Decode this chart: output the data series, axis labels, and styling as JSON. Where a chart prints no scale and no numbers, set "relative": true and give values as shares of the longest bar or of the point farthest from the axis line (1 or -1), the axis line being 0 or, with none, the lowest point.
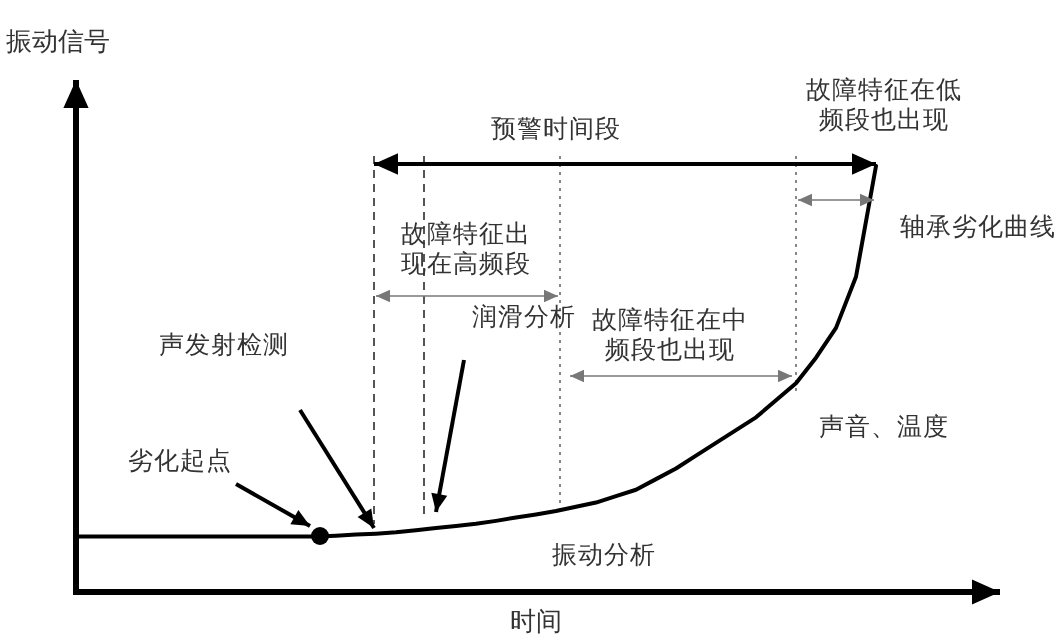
{
  "chart_data": {
    "type": "line",
    "relative": true,
    "xlabel": "时间",
    "ylabel": "振动信号",
    "tick_labels": false,
    "categories": [
      null,
      null,
      null,
      null,
      null,
      null,
      null,
      null,
      null,
      null,
      null,
      null,
      null,
      null,
      null,
      null,
      null,
      null,
      null,
      null,
      null,
      null,
      null,
      null,
      null,
      null,
      null,
      null,
      null,
      null,
      null,
      null,
      null,
      null,
      null,
      null,
      null,
      null,
      null,
      null,
      null
    ],
    "series": [
      {
        "color": "#000000",
        "values": [
          0.13,
          0.13,
          0.13,
          0.13,
          0.13,
          0.13,
          0.13,
          0.13,
          0.13,
          0.13,
          0.13,
          0.13,
          0.13,
          0.132,
          0.135,
          0.137,
          0.14,
          0.145,
          0.15,
          0.155,
          0.16,
          0.167,
          0.175,
          0.182,
          0.19,
          0.2,
          0.21,
          0.225,
          0.24,
          0.265,
          0.29,
          0.32,
          0.35,
          0.38,
          0.41,
          0.45,
          0.49,
          0.55,
          0.62,
          0.74,
          1.0
        ]
      }
    ],
    "annotations": [
      "预警时间段",
      "故障特征在低频段也出现",
      "轴承劣化曲线",
      "故障特征出现在高频段",
      "声发射检测",
      "润滑分析",
      "故障特征在中频段也出现",
      "劣化起点",
      "声音、温度",
      "振动分析"
    ]
  }
}
